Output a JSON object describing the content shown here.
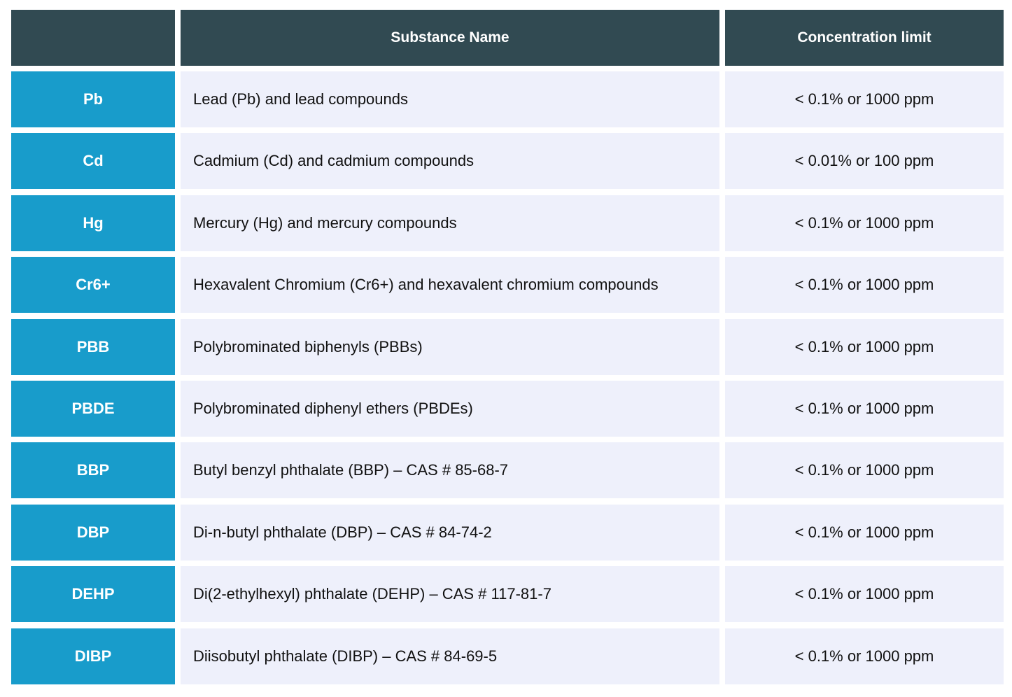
{
  "table": {
    "header": [
      "Substance Name",
      "Concentration limit"
    ],
    "rows": [
      [
        "Pb",
        "Lead (Pb) and lead compounds",
        "< 0.1% or 1000 ppm"
      ],
      [
        "Cd",
        "Cadmium (Cd) and cadmium compounds",
        "< 0.01% or 100 ppm"
      ],
      [
        "Hg",
        "Mercury (Hg) and mercury compounds",
        "< 0.1% or 1000 ppm"
      ],
      [
        "Cr6+",
        "Hexavalent Chromium (Cr6+) and hexavalent chromium compounds",
        "< 0.1% or 1000 ppm"
      ],
      [
        "PBB",
        "Polybrominated biphenyls (PBBs)",
        "< 0.1% or 1000 ppm"
      ],
      [
        "PBDE",
        "Polybrominated diphenyl ethers (PBDEs)",
        "< 0.1% or 1000 ppm"
      ],
      [
        "BBP",
        "Butyl benzyl phthalate (BBP) – CAS # 85-68-7",
        "< 0.1% or 1000 ppm"
      ],
      [
        "DBP",
        "Di-n-butyl phthalate (DBP) – CAS # 84-74-2",
        "< 0.1% or 1000 ppm"
      ],
      [
        "DEHP",
        "Di(2-ethylhexyl) phthalate (DEHP) – CAS # 117-81-7",
        "< 0.1% or 1000 ppm"
      ],
      [
        "DIBP",
        "Diisobutyl phthalate (DIBP) – CAS # 84-69-5",
        "< 0.1% or 1000 ppm"
      ]
    ]
  }
}
